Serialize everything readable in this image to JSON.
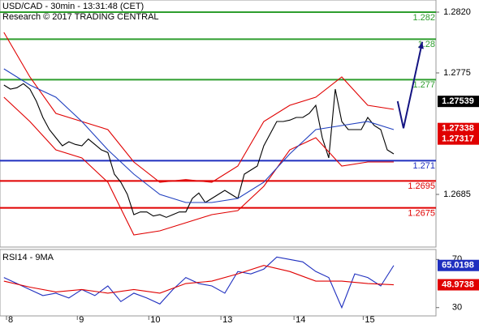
{
  "chart_data": [
    {
      "type": "line",
      "title": "USD/CAD - 30min - 13:31:48 (CET)",
      "subtitle": "Research © 2017 TRADING CENTRAL",
      "xlim": [
        -0.6,
        66.5
      ],
      "ylim": [
        1.2646,
        1.2829
      ],
      "yticks": [
        {
          "value": 1.282,
          "label": "1.2820"
        },
        {
          "value": 1.2775,
          "label": "1.2775"
        },
        {
          "value": 1.2685,
          "label": "1.2685"
        }
      ],
      "x": [
        0,
        1,
        2,
        3,
        4,
        5,
        6,
        7,
        8,
        9,
        10,
        11,
        12,
        13,
        14,
        15,
        16,
        17,
        18,
        19,
        20,
        21,
        22,
        23,
        24,
        25,
        26,
        27,
        28,
        29,
        30,
        31,
        32,
        33,
        34,
        35,
        36,
        37,
        38,
        39,
        40,
        41,
        42,
        43,
        44,
        45,
        46,
        47,
        48,
        49,
        50,
        51,
        52,
        53,
        54,
        55,
        56,
        57,
        58,
        59,
        60
      ],
      "series": [
        {
          "color": "#000000",
          "values": [
            1.2766,
            1.2763,
            1.2764,
            1.2767,
            1.2763,
            1.2754,
            1.2742,
            1.2733,
            1.2727,
            1.2721,
            1.2724,
            1.2722,
            1.2721,
            1.2726,
            1.2722,
            1.2718,
            1.2716,
            1.27,
            1.2694,
            1.2685,
            1.267,
            1.2672,
            1.2672,
            1.2669,
            1.267,
            1.2668,
            1.267,
            1.2672,
            1.2672,
            1.2682,
            1.2686,
            1.2679,
            1.2682,
            1.2685,
            1.2688,
            1.2685,
            1.2682,
            1.27,
            1.2703,
            1.2706,
            1.2721,
            1.273,
            1.2739,
            1.2739,
            1.274,
            1.2742,
            1.2742,
            1.2745,
            1.2751,
            1.2727,
            1.2712,
            1.2763,
            1.2739,
            1.2733,
            1.2733,
            1.2733,
            1.2742,
            1.2736,
            1.2733,
            1.2718,
            1.2715
          ]
        },
        {
          "color": "#e00000",
          "x": [
            0,
            4,
            8,
            12,
            16,
            20,
            24,
            28,
            32,
            36,
            40,
            44,
            48,
            52,
            56,
            60
          ],
          "values": [
            1.2805,
            1.2772,
            1.2745,
            1.2739,
            1.2733,
            1.2709,
            1.2694,
            1.2696,
            1.2694,
            1.2706,
            1.2739,
            1.2751,
            1.2757,
            1.2772,
            1.2751,
            1.2748
          ]
        },
        {
          "color": "#e00000",
          "x": [
            0,
            4,
            8,
            12,
            16,
            20,
            24,
            28,
            32,
            36,
            40,
            44,
            48,
            52,
            56,
            60
          ],
          "values": [
            1.2757,
            1.2739,
            1.2718,
            1.2712,
            1.2694,
            1.2655,
            1.2658,
            1.2664,
            1.267,
            1.2673,
            1.2691,
            1.2718,
            1.2727,
            1.2706,
            1.2709,
            1.2709
          ]
        },
        {
          "color": "#1f3fbf",
          "x": [
            0,
            4,
            8,
            12,
            16,
            20,
            24,
            28,
            32,
            36,
            40,
            44,
            48,
            52,
            56,
            60
          ],
          "values": [
            1.2778,
            1.2766,
            1.2757,
            1.2739,
            1.2718,
            1.27,
            1.2685,
            1.2679,
            1.2679,
            1.2682,
            1.2694,
            1.2715,
            1.2733,
            1.2736,
            1.2739,
            1.2733
          ]
        }
      ],
      "forecast": {
        "color": "#141482",
        "x": [
          60.6,
          61.5,
          64.4
        ],
        "values": [
          1.2754,
          1.2734,
          1.2798
        ]
      },
      "levels": [
        {
          "value": 1.282,
          "color": "#2e9e2e"
        },
        {
          "value": 1.28,
          "color": "#2e9e2e"
        },
        {
          "value": 1.277,
          "color": "#2e9e2e"
        },
        {
          "value": 1.271,
          "color": "#1f2fbf"
        },
        {
          "value": 1.2695,
          "color": "#e00000"
        },
        {
          "value": 1.2675,
          "color": "#e00000"
        }
      ],
      "price_tags": [
        {
          "value": 1.27539,
          "color": "#000000"
        },
        {
          "value": 1.27338,
          "color": "#e00000"
        },
        {
          "value": 1.27317,
          "color": "#e00000"
        }
      ]
    },
    {
      "type": "line",
      "title": "RSI14 - 9MA",
      "xlim": [
        -0.6,
        66.5
      ],
      "xticks": [
        {
          "value": 0.4,
          "label": "8"
        },
        {
          "value": 11.3,
          "label": "9"
        },
        {
          "value": 22.3,
          "label": "10"
        },
        {
          "value": 33.4,
          "label": "13"
        },
        {
          "value": 44.65,
          "label": "14"
        },
        {
          "value": 55.3,
          "label": "15"
        }
      ],
      "ylim": [
        23.1,
        78.3
      ],
      "yticks": [
        70,
        30
      ],
      "series": [
        {
          "color": "#1f2fbf",
          "x": [
            0,
            2,
            4,
            6,
            8,
            10,
            12,
            14,
            16,
            18,
            20,
            22,
            24,
            26,
            28,
            30,
            32,
            34,
            36,
            38,
            40,
            42,
            44,
            46,
            48,
            50,
            52,
            54,
            56,
            58,
            60
          ],
          "values": [
            55,
            50,
            45,
            40,
            42,
            38,
            45,
            40,
            48,
            35,
            42,
            38,
            33,
            45,
            55,
            50,
            48,
            42,
            60,
            58,
            62,
            72,
            70,
            68,
            60,
            55,
            30,
            58,
            55,
            48,
            65
          ]
        },
        {
          "color": "#e00000",
          "x": [
            0,
            4,
            8,
            12,
            16,
            20,
            24,
            28,
            32,
            36,
            40,
            44,
            48,
            52,
            56,
            60
          ],
          "values": [
            52,
            47,
            43,
            45,
            42,
            45,
            42,
            50,
            52,
            58,
            65,
            60,
            52,
            52,
            50,
            49
          ]
        }
      ],
      "price_tags": [
        {
          "value": 65.0198,
          "color": "#1f2fbf"
        },
        {
          "value": 48.9738,
          "color": "#e00000"
        }
      ]
    }
  ]
}
